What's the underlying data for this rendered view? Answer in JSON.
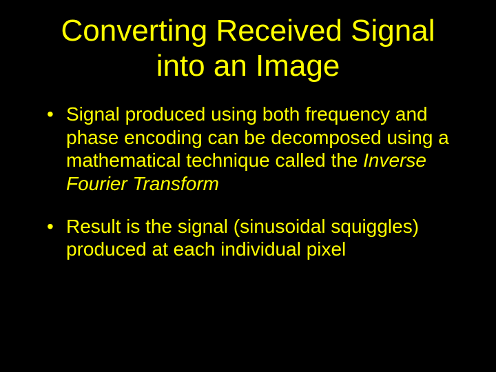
{
  "slide": {
    "background_color": "#000000",
    "text_color": "#ffff00",
    "title_fontsize": 44,
    "body_fontsize": 28,
    "font_family": "Verdana",
    "title": "Converting Received Signal into an Image",
    "bullets": [
      {
        "prefix": "Signal produced using both frequency and phase encoding can be decomposed using a mathematical technique called the ",
        "italic": "Inverse Fourier Transform",
        "suffix": ""
      },
      {
        "prefix": "Result is the signal (sinusoidal squiggles) produced at each individual pixel",
        "italic": "",
        "suffix": ""
      }
    ]
  }
}
